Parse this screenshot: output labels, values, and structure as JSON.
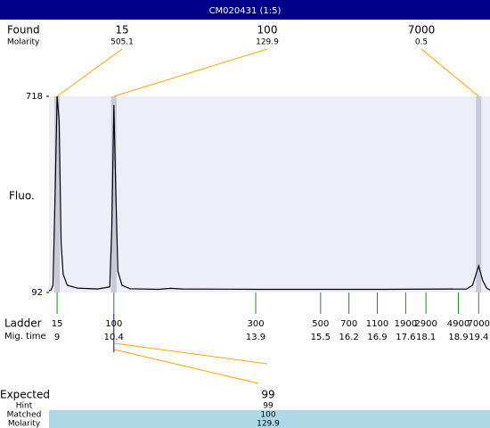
{
  "header": {
    "title": "CM020431 (1:5)"
  },
  "found": {
    "label": "Found",
    "sublabel": "Molarity",
    "peaks": [
      {
        "size": 15,
        "molarity": 505.1
      },
      {
        "size": 100,
        "molarity": 129.9
      },
      {
        "size": 7000,
        "molarity": 0.5
      }
    ]
  },
  "chart_data": {
    "type": "line",
    "ylabel": "Fluo.",
    "color": "#000000",
    "ylim": [
      92,
      718
    ],
    "yticks": [
      718,
      92
    ],
    "xlim": [
      8.8,
      19.68
    ],
    "x": [
      8.8,
      8.85,
      8.9,
      8.95,
      9.0,
      9.05,
      9.1,
      9.15,
      9.25,
      9.5,
      10.0,
      10.3,
      10.35,
      10.4,
      10.45,
      10.5,
      10.6,
      10.8,
      11.5,
      11.8,
      12.1,
      14,
      17,
      19.1,
      19.25,
      19.4,
      19.5,
      19.6,
      19.68
    ],
    "values": [
      98,
      100,
      115,
      400,
      718,
      640,
      250,
      150,
      115,
      106,
      103,
      110,
      300,
      690,
      400,
      160,
      115,
      104,
      102,
      105,
      103,
      102,
      102,
      103,
      115,
      177,
      130,
      105,
      100
    ],
    "ladder": {
      "label": "Ladder",
      "sublabel": "Mig. time",
      "sizes": [
        15,
        100,
        300,
        500,
        700,
        1100,
        1900,
        2900,
        4900,
        7000
      ],
      "times": [
        9,
        10.4,
        13.9,
        15.5,
        16.2,
        16.9,
        17.6,
        18.1,
        18.9,
        19.4
      ]
    }
  },
  "assignment": {
    "rows": [
      [
        "Expected",
        99
      ],
      [
        "Hint",
        99
      ],
      [
        "Matched",
        100
      ],
      [
        "Molarity",
        129.9
      ]
    ]
  }
}
